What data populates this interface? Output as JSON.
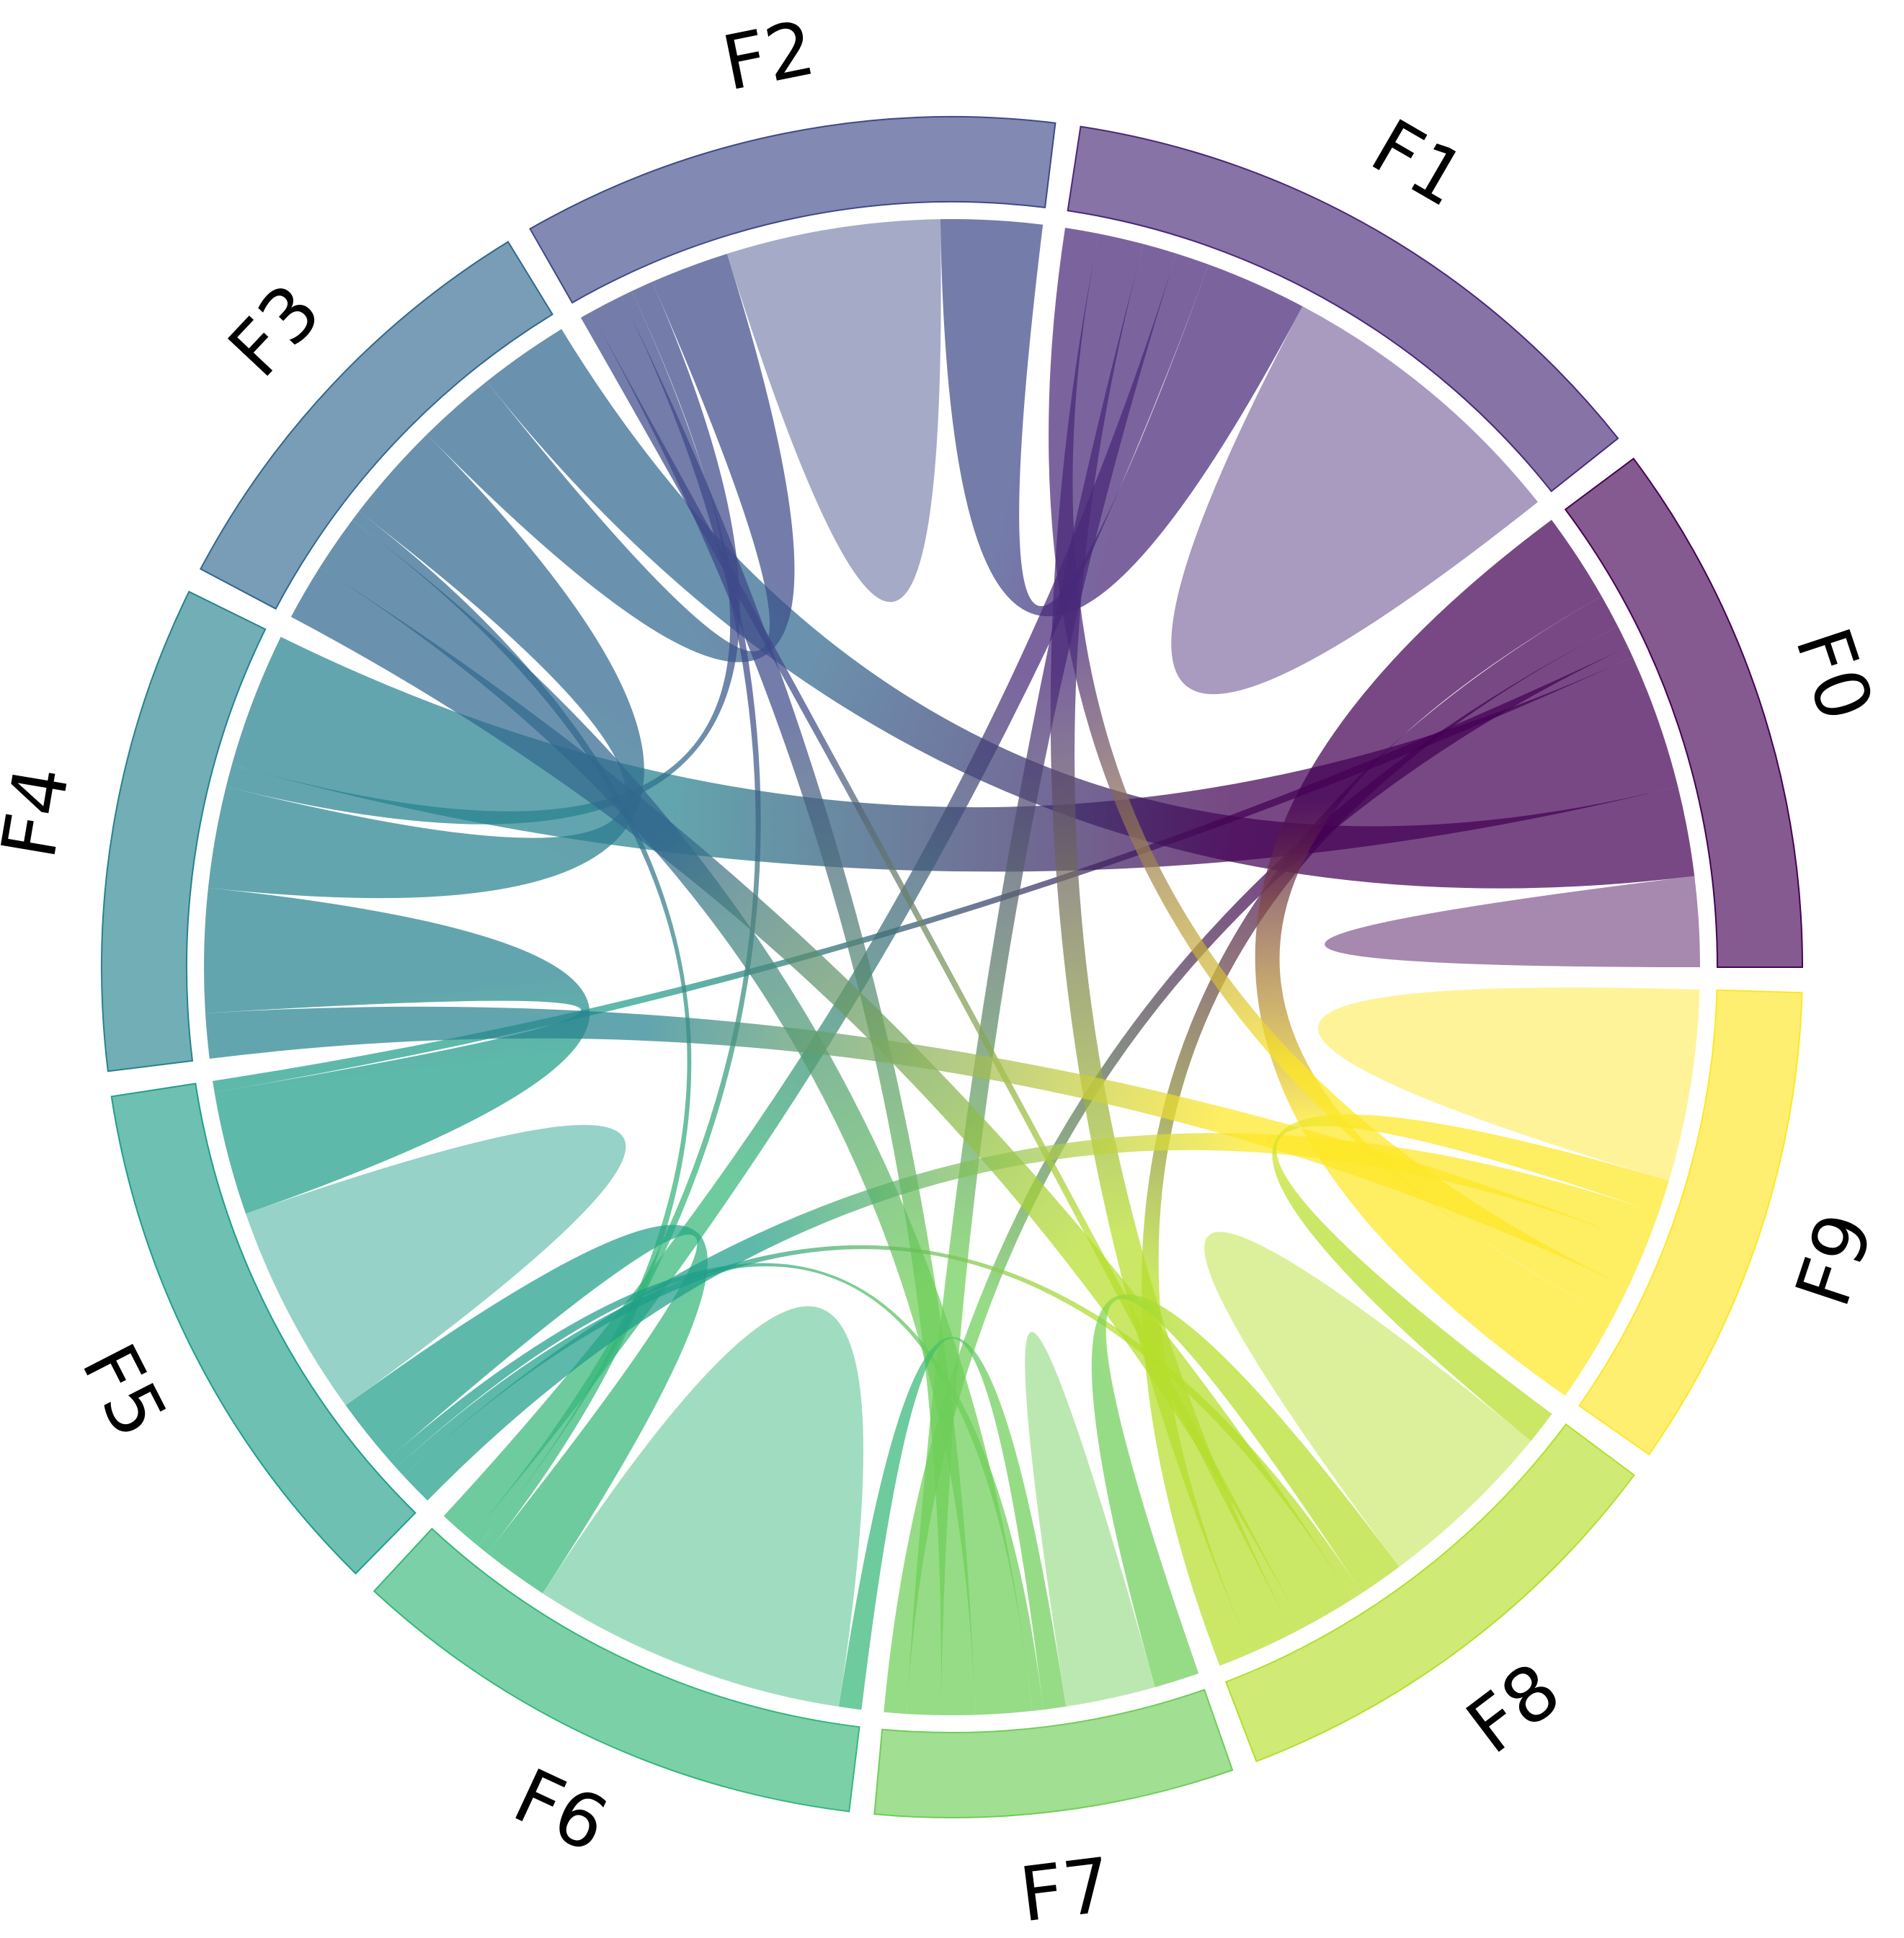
{
  "chart_data": {
    "type": "chord",
    "title": "",
    "nodes": [
      {
        "name": "F0",
        "color": "#440154"
      },
      {
        "name": "F1",
        "color": "#482878"
      },
      {
        "name": "F2",
        "color": "#3e4989"
      },
      {
        "name": "F3",
        "color": "#31688e"
      },
      {
        "name": "F4",
        "color": "#26828e"
      },
      {
        "name": "F5",
        "color": "#1f9e89"
      },
      {
        "name": "F6",
        "color": "#35b779"
      },
      {
        "name": "F7",
        "color": "#6ece58"
      },
      {
        "name": "F8",
        "color": "#b5de2b"
      },
      {
        "name": "F9",
        "color": "#fde725"
      }
    ],
    "matrix": [
      [
        8,
        0,
        0,
        8,
        12,
        1,
        0,
        2,
        3,
        8
      ],
      [
        0,
        27,
        9,
        0,
        0,
        0,
        3,
        3,
        4,
        3
      ],
      [
        0,
        9,
        19,
        7,
        2,
        0,
        1,
        3,
        1,
        0
      ],
      [
        8,
        0,
        7,
        0,
        9,
        0,
        1,
        5,
        5,
        0
      ],
      [
        12,
        0,
        2,
        9,
        0,
        11,
        0,
        0,
        0,
        4
      ],
      [
        1,
        0,
        0,
        0,
        11,
        19,
        6,
        1,
        1,
        3
      ],
      [
        0,
        3,
        1,
        1,
        0,
        6,
        28,
        2,
        0,
        0
      ],
      [
        2,
        3,
        3,
        5,
        0,
        1,
        2,
        8,
        4,
        0
      ],
      [
        3,
        4,
        1,
        5,
        0,
        1,
        0,
        4,
        16,
        3
      ],
      [
        8,
        3,
        0,
        0,
        4,
        3,
        0,
        0,
        3,
        17
      ]
    ],
    "legend": "none",
    "grid": false
  }
}
